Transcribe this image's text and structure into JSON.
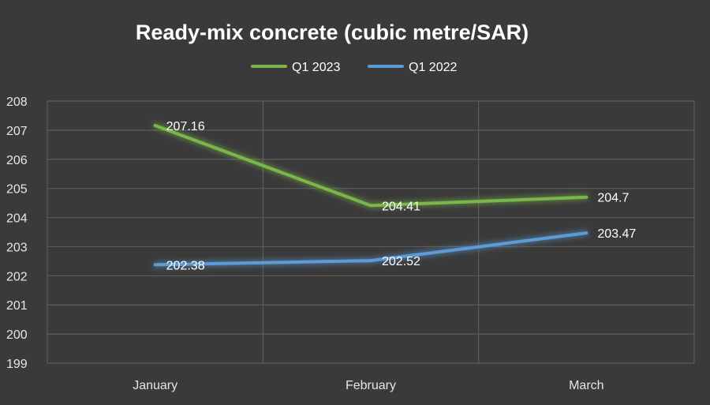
{
  "chart_data": {
    "type": "line",
    "title": "Ready-mix concrete (cubic metre/SAR)",
    "categories": [
      "January",
      "February",
      "March"
    ],
    "series": [
      {
        "name": "Q1 2023",
        "values": [
          207.16,
          204.41,
          204.7
        ],
        "labels": [
          "207.16",
          "204.41",
          "204.7"
        ],
        "color": "#7ab648"
      },
      {
        "name": "Q1 2022",
        "values": [
          202.38,
          202.52,
          203.47
        ],
        "labels": [
          "202.38",
          "202.52",
          "203.47"
        ],
        "color": "#5b9bd5"
      }
    ],
    "ylim": [
      199,
      208
    ],
    "yticks": [
      "199",
      "200",
      "201",
      "202",
      "203",
      "204",
      "205",
      "206",
      "207",
      "208"
    ],
    "grid": true,
    "legend_position": "top"
  }
}
